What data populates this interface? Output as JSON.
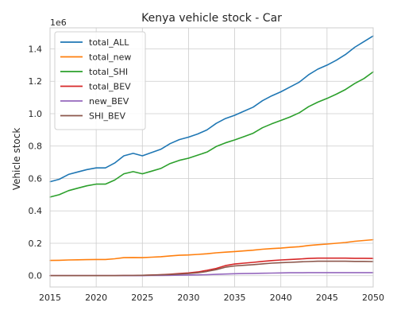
{
  "chart_data": {
    "type": "line",
    "title": "Kenya vehicle stock - Car",
    "xlabel": "",
    "ylabel": "Vehicle stock",
    "y_scale_label": "1e6",
    "xlim": [
      2015,
      2050
    ],
    "ylim": [
      -0.07,
      1.53
    ],
    "y_unit_multiplier": 1000000,
    "x_ticks": [
      2015,
      2020,
      2025,
      2030,
      2035,
      2040,
      2045,
      2050
    ],
    "y_ticks": [
      0.0,
      0.2,
      0.4,
      0.6,
      0.8,
      1.0,
      1.2,
      1.4
    ],
    "y_tick_labels": [
      "0.0",
      "0.2",
      "0.4",
      "0.6",
      "0.8",
      "1.0",
      "1.2",
      "1.4"
    ],
    "grid": true,
    "legend_position": "top-left",
    "x": [
      2015,
      2016,
      2017,
      2018,
      2019,
      2020,
      2021,
      2022,
      2023,
      2024,
      2025,
      2026,
      2027,
      2028,
      2029,
      2030,
      2031,
      2032,
      2033,
      2034,
      2035,
      2036,
      2037,
      2038,
      2039,
      2040,
      2041,
      2042,
      2043,
      2044,
      2045,
      2046,
      2047,
      2048,
      2049,
      2050
    ],
    "series": [
      {
        "name": "total_ALL",
        "color": "#1f77b4",
        "values": [
          0.58,
          0.595,
          0.625,
          0.64,
          0.655,
          0.665,
          0.665,
          0.695,
          0.74,
          0.755,
          0.74,
          0.76,
          0.78,
          0.815,
          0.84,
          0.855,
          0.875,
          0.9,
          0.94,
          0.97,
          0.99,
          1.015,
          1.04,
          1.08,
          1.11,
          1.135,
          1.165,
          1.195,
          1.24,
          1.275,
          1.3,
          1.33,
          1.365,
          1.41,
          1.445,
          1.48
        ]
      },
      {
        "name": "total_new",
        "color": "#ff7f0e",
        "values": [
          0.094,
          0.095,
          0.097,
          0.098,
          0.099,
          0.1,
          0.1,
          0.104,
          0.111,
          0.112,
          0.111,
          0.114,
          0.117,
          0.122,
          0.126,
          0.128,
          0.131,
          0.135,
          0.141,
          0.145,
          0.149,
          0.153,
          0.157,
          0.163,
          0.167,
          0.17,
          0.175,
          0.179,
          0.186,
          0.191,
          0.195,
          0.2,
          0.205,
          0.212,
          0.217,
          0.222
        ]
      },
      {
        "name": "total_SHI",
        "color": "#2ca02c",
        "values": [
          0.485,
          0.5,
          0.525,
          0.54,
          0.555,
          0.565,
          0.565,
          0.59,
          0.629,
          0.642,
          0.629,
          0.645,
          0.662,
          0.692,
          0.712,
          0.725,
          0.744,
          0.763,
          0.797,
          0.82,
          0.838,
          0.858,
          0.879,
          0.913,
          0.937,
          0.958,
          0.98,
          1.006,
          1.043,
          1.071,
          1.094,
          1.12,
          1.149,
          1.186,
          1.217,
          1.258
        ]
      },
      {
        "name": "total_BEV",
        "color": "#d62728",
        "values": [
          0,
          0,
          0,
          0,
          0,
          0,
          0,
          0,
          0.001,
          0.001,
          0.002,
          0.004,
          0.006,
          0.009,
          0.013,
          0.017,
          0.023,
          0.033,
          0.045,
          0.062,
          0.072,
          0.077,
          0.082,
          0.088,
          0.093,
          0.097,
          0.1,
          0.103,
          0.106,
          0.108,
          0.108,
          0.108,
          0.108,
          0.107,
          0.107,
          0.106
        ]
      },
      {
        "name": "new_BEV",
        "color": "#9467bd",
        "values": [
          0,
          0,
          0,
          0,
          0,
          0,
          0,
          0,
          0,
          0,
          0,
          0.001,
          0.001,
          0.002,
          0.003,
          0.004,
          0.005,
          0.006,
          0.008,
          0.01,
          0.012,
          0.013,
          0.014,
          0.015,
          0.016,
          0.017,
          0.018,
          0.018,
          0.019,
          0.019,
          0.019,
          0.019,
          0.019,
          0.019,
          0.019,
          0.019
        ]
      },
      {
        "name": "SHI_BEV",
        "color": "#8c564b",
        "values": [
          0,
          0,
          0,
          0,
          0,
          0,
          0,
          0,
          0.001,
          0.001,
          0.002,
          0.003,
          0.005,
          0.007,
          0.01,
          0.013,
          0.018,
          0.026,
          0.037,
          0.052,
          0.06,
          0.064,
          0.068,
          0.073,
          0.077,
          0.08,
          0.082,
          0.085,
          0.087,
          0.089,
          0.089,
          0.089,
          0.089,
          0.088,
          0.088,
          0.087
        ]
      }
    ]
  }
}
